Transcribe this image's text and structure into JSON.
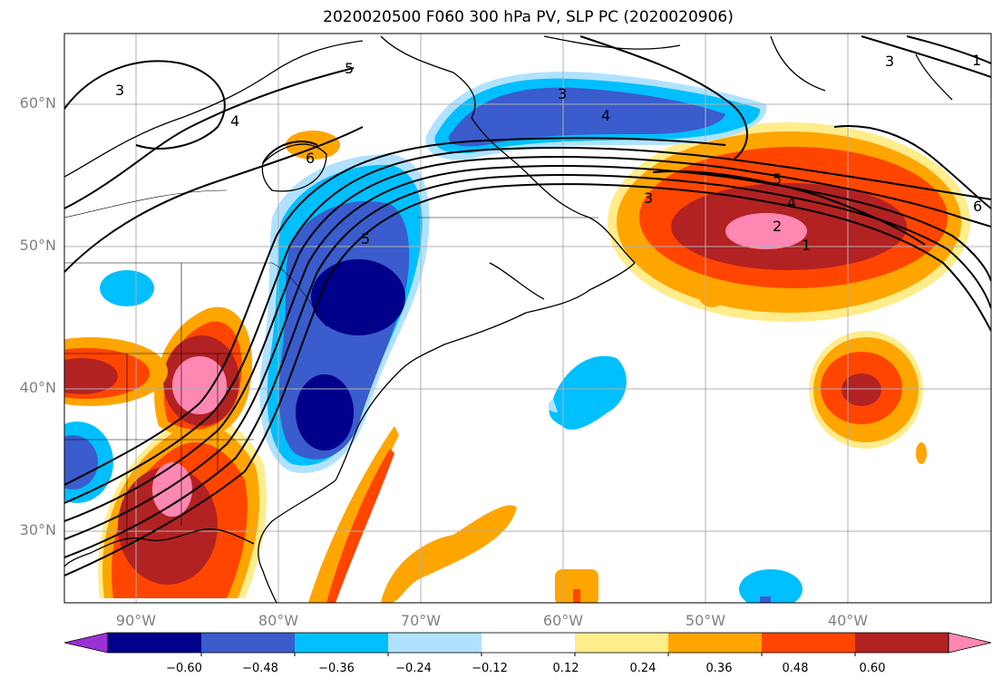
{
  "title": "2020020500 F060 300 hPa PV, SLP PC (2020020906)",
  "lat_labels": [
    "60°N",
    "50°N",
    "40°N",
    "30°N"
  ],
  "lon_labels": [
    "90°W",
    "80°W",
    "70°W",
    "60°W",
    "50°W",
    "40°W"
  ],
  "contour_labels": [
    "5",
    "3",
    "4",
    "3",
    "4",
    "5",
    "3",
    "4",
    "2",
    "1",
    "6",
    "3",
    "1",
    "5",
    "6"
  ],
  "colorbar": {
    "colors": [
      "#9b30d6",
      "#00008b",
      "#3a5ccc",
      "#00bfff",
      "#b0e2ff",
      "#ffffff",
      "#ffec8b",
      "#ffa500",
      "#ff4500",
      "#b22222",
      "#ff88b3"
    ],
    "tick_labels": [
      "−0.60",
      "−0.48",
      "−0.36",
      "−0.24",
      "−0.12",
      "0.12",
      "0.24",
      "0.36",
      "0.48",
      "0.60"
    ]
  },
  "colors": {
    "pink": "#ff88b3",
    "dark_red": "#b22222",
    "red_orange": "#ff4500",
    "orange": "#ffa500",
    "light_yellow": "#ffec8b",
    "light_blue": "#b0e2ff",
    "cyan": "#00bfff",
    "royal_blue": "#3a5ccc",
    "navy": "#00008b"
  }
}
